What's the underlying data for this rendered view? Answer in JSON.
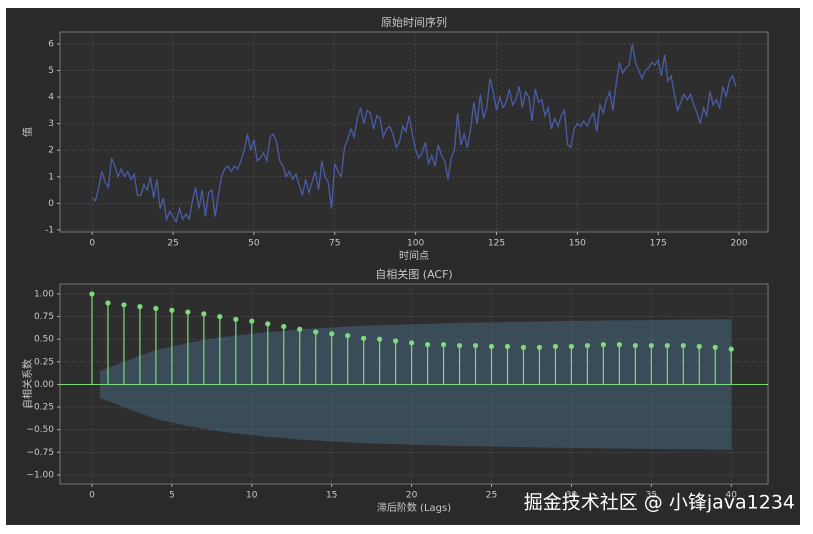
{
  "chart_data": [
    {
      "type": "line",
      "title": "原始时间序列",
      "xlabel": "时间点",
      "ylabel": "值",
      "grid": true,
      "xlim": [
        -9.95,
        208.95
      ],
      "ylim": [
        -1.08,
        6.45
      ],
      "xticks": [
        0,
        25,
        50,
        75,
        100,
        125,
        150,
        175,
        200
      ],
      "yticks": [
        -1,
        0,
        1,
        2,
        3,
        4,
        5,
        6
      ],
      "series": [
        {
          "color": "#4a5da6",
          "x": [
            0,
            1,
            2,
            3,
            4,
            5,
            6,
            7,
            8,
            9,
            10,
            11,
            12,
            13,
            14,
            15,
            16,
            17,
            18,
            19,
            20,
            21,
            22,
            23,
            24,
            25,
            26,
            27,
            28,
            29,
            30,
            31,
            32,
            33,
            34,
            35,
            36,
            37,
            38,
            39,
            40,
            41,
            42,
            43,
            44,
            45,
            46,
            47,
            48,
            49,
            50,
            51,
            52,
            53,
            54,
            55,
            56,
            57,
            58,
            59,
            60,
            61,
            62,
            63,
            64,
            65,
            66,
            67,
            68,
            69,
            70,
            71,
            72,
            73,
            74,
            75,
            76,
            77,
            78,
            79,
            80,
            81,
            82,
            83,
            84,
            85,
            86,
            87,
            88,
            89,
            90,
            91,
            92,
            93,
            94,
            95,
            96,
            97,
            98,
            99,
            100,
            101,
            102,
            103,
            104,
            105,
            106,
            107,
            108,
            109,
            110,
            111,
            112,
            113,
            114,
            115,
            116,
            117,
            118,
            119,
            120,
            121,
            122,
            123,
            124,
            125,
            126,
            127,
            128,
            129,
            130,
            131,
            132,
            133,
            134,
            135,
            136,
            137,
            138,
            139,
            140,
            141,
            142,
            143,
            144,
            145,
            146,
            147,
            148,
            149,
            150,
            151,
            152,
            153,
            154,
            155,
            156,
            157,
            158,
            159,
            160,
            161,
            162,
            163,
            164,
            165,
            166,
            167,
            168,
            169,
            170,
            171,
            172,
            173,
            174,
            175,
            176,
            177,
            178,
            179,
            180,
            181,
            182,
            183,
            184,
            185,
            186,
            187,
            188,
            189,
            190,
            191,
            192,
            193,
            194,
            195,
            196,
            197,
            198,
            199
          ],
          "values": [
            0.2,
            0.1,
            0.6,
            1.2,
            0.8,
            0.6,
            1.7,
            1.4,
            1.0,
            1.3,
            1.0,
            1.2,
            0.9,
            1.1,
            0.3,
            0.3,
            0.7,
            0.5,
            1.0,
            0.2,
            0.9,
            -0.2,
            0.2,
            -0.6,
            -0.3,
            -0.5,
            -0.7,
            -0.2,
            -0.6,
            -0.4,
            -0.6,
            0.1,
            0.6,
            -0.2,
            0.5,
            -0.5,
            0.4,
            0.5,
            -0.5,
            0.3,
            1.0,
            1.3,
            1.4,
            1.2,
            1.4,
            1.3,
            1.6,
            2.0,
            2.6,
            2.0,
            2.4,
            1.6,
            1.7,
            1.9,
            1.6,
            2.5,
            2.6,
            2.3,
            1.6,
            1.4,
            1.0,
            1.2,
            0.9,
            1.1,
            0.7,
            0.3,
            0.9,
            0.4,
            0.8,
            1.2,
            0.5,
            1.6,
            1.0,
            0.8,
            -0.2,
            1.5,
            1.2,
            1.0,
            2.1,
            2.4,
            2.8,
            2.5,
            3.2,
            3.6,
            3.0,
            3.5,
            3.4,
            2.8,
            3.3,
            3.2,
            2.5,
            2.8,
            2.9,
            2.6,
            2.1,
            2.3,
            2.9,
            2.7,
            3.3,
            2.6,
            2.0,
            1.7,
            1.9,
            2.3,
            1.5,
            1.8,
            1.4,
            2.2,
            1.8,
            1.6,
            0.9,
            1.7,
            2.0,
            3.4,
            2.2,
            2.6,
            2.1,
            2.8,
            3.8,
            3.0,
            4.1,
            3.2,
            3.6,
            4.7,
            4.2,
            3.5,
            4.0,
            3.6,
            3.8,
            4.3,
            3.7,
            3.9,
            4.4,
            3.6,
            4.2,
            4.0,
            3.1,
            4.3,
            3.8,
            3.9,
            3.3,
            3.6,
            2.8,
            3.2,
            2.9,
            3.3,
            3.5,
            2.2,
            2.1,
            2.8,
            3.0,
            2.9,
            3.1,
            2.9,
            3.2,
            3.4,
            2.7,
            3.7,
            3.4,
            3.9,
            4.2,
            3.5,
            4.5,
            5.3,
            4.9,
            5.1,
            5.2,
            6.0,
            5.3,
            5.0,
            4.7,
            5.0,
            5.1,
            5.3,
            5.2,
            5.4,
            4.8,
            5.6,
            4.6,
            4.8,
            4.1,
            3.5,
            3.8,
            4.1,
            3.9,
            4.1,
            3.7,
            3.4,
            3.0,
            3.6,
            3.3,
            4.2,
            3.7,
            3.9,
            3.6,
            4.4,
            4.0,
            4.6,
            4.8,
            4.4
          ]
        }
      ]
    },
    {
      "type": "stem",
      "title": "自相关图 (ACF)",
      "xlabel": "滞后阶数 (Lags)",
      "ylabel": "自相关系数",
      "grid": true,
      "xlim": [
        -2,
        42.3
      ],
      "ylim": [
        -1.1,
        1.11
      ],
      "xticks": [
        0,
        5,
        10,
        15,
        20,
        25,
        30,
        35,
        40
      ],
      "yticks": [
        {
          "value": -1,
          "label": "−1.00"
        },
        {
          "value": -0.75,
          "label": "−0.75"
        },
        {
          "value": -0.5,
          "label": "−0.50"
        },
        {
          "value": -0.25,
          "label": "−0.25"
        },
        {
          "value": 0,
          "label": "0.00"
        },
        {
          "value": 0.25,
          "label": "0.25"
        },
        {
          "value": 0.5,
          "label": "0.50"
        },
        {
          "value": 0.75,
          "label": "0.75"
        },
        {
          "value": 1,
          "label": "1.00"
        }
      ],
      "band_color": "#4a7a96",
      "series": [
        {
          "color": "#7fd97f",
          "x": [
            0,
            1,
            2,
            3,
            4,
            5,
            6,
            7,
            8,
            9,
            10,
            11,
            12,
            13,
            14,
            15,
            16,
            17,
            18,
            19,
            20,
            21,
            22,
            23,
            24,
            25,
            26,
            27,
            28,
            29,
            30,
            31,
            32,
            33,
            34,
            35,
            36,
            37,
            38,
            39,
            40
          ],
          "values": [
            1.0,
            0.9,
            0.88,
            0.86,
            0.84,
            0.82,
            0.8,
            0.78,
            0.75,
            0.72,
            0.7,
            0.67,
            0.64,
            0.61,
            0.58,
            0.56,
            0.54,
            0.51,
            0.5,
            0.48,
            0.46,
            0.44,
            0.44,
            0.43,
            0.43,
            0.42,
            0.42,
            0.41,
            0.41,
            0.42,
            0.42,
            0.43,
            0.44,
            0.44,
            0.43,
            0.43,
            0.43,
            0.43,
            0.42,
            0.41,
            0.39
          ],
          "confint": [
            null,
            0.15,
            0.25,
            0.32,
            0.38,
            0.42,
            0.46,
            0.49,
            0.52,
            0.54,
            0.56,
            0.58,
            0.59,
            0.61,
            0.62,
            0.63,
            0.64,
            0.65,
            0.655,
            0.66,
            0.665,
            0.67,
            0.675,
            0.68,
            0.683,
            0.686,
            0.69,
            0.693,
            0.696,
            0.699,
            0.702,
            0.704,
            0.706,
            0.708,
            0.71,
            0.712,
            0.714,
            0.716,
            0.718,
            0.719,
            0.72
          ]
        }
      ]
    }
  ],
  "watermark": "掘金技术社区 @ 小锋java1234"
}
